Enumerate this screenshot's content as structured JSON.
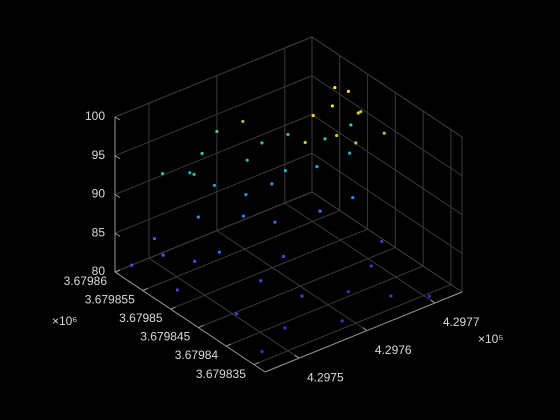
{
  "chart_data": {
    "type": "scatter3",
    "colormap": "parula",
    "grid": true,
    "xlim": [
      4.29745,
      4.29774
    ],
    "ylim": [
      3.679833,
      3.67986
    ],
    "zlim": [
      80,
      100
    ],
    "xticks": [
      4.2975,
      4.2976,
      4.2977
    ],
    "yticks": [
      3.679835,
      3.67984,
      3.679845,
      3.67985,
      3.679855,
      3.67986
    ],
    "zticks": [
      80,
      85,
      90,
      95,
      100
    ],
    "x_exponent_label": "×10⁵",
    "y_exponent_label": "×10⁶",
    "x": [
      4.29747,
      4.29752,
      4.29758,
      4.29763,
      4.29768,
      4.29772,
      4.29749,
      4.29755,
      4.2976,
      4.29766,
      4.29746,
      4.29751,
      4.29757,
      4.2977,
      4.29745,
      4.2975,
      4.29762,
      4.29767,
      4.29771,
      4.29748,
      4.29754,
      4.29758,
      4.29761,
      4.29764,
      4.29769,
      4.29773,
      4.29756,
      4.29759,
      4.29753,
      4.29765,
      4.29757,
      4.2976,
      4.29763,
      4.29752,
      4.29762,
      4.29768,
      4.29771,
      4.29774,
      4.29755,
      4.29766,
      4.29766,
      4.29768,
      4.2977,
      4.29767,
      4.29771,
      4.29773,
      4.29769,
      4.29772,
      4.29764,
      4.29774
    ],
    "y": [
      3.679836,
      3.679838,
      3.679835,
      3.67984,
      3.679842,
      3.679845,
      3.679843,
      3.679846,
      3.679848,
      3.679836,
      3.67985,
      3.679853,
      3.679841,
      3.679834,
      3.679857,
      3.679859,
      3.679852,
      3.67985,
      3.679849,
      3.679855,
      3.679856,
      3.679858,
      3.679856,
      3.679855,
      3.679853,
      3.679852,
      3.67986,
      3.679854,
      3.679851,
      3.679858,
      3.679859,
      3.67986,
      3.679859,
      3.67986,
      3.679857,
      3.679857,
      3.679854,
      3.679853,
      3.679858,
      3.679855,
      3.67985,
      3.679849,
      3.679851,
      3.679847,
      3.679848,
      3.67985,
      3.679846,
      3.679851,
      3.679849,
      3.679847
    ],
    "z": [
      80.5,
      80.8,
      81.0,
      80.6,
      81.2,
      81.5,
      81.3,
      82.0,
      82.4,
      80.9,
      82.1,
      82.6,
      81.7,
      80.4,
      82.3,
      83.0,
      84.2,
      84.8,
      85.6,
      83.5,
      85.8,
      87.5,
      86.2,
      87.0,
      88.4,
      89.2,
      88.9,
      85.1,
      84.0,
      90.5,
      91.5,
      92.8,
      93.5,
      90.2,
      89.8,
      91.0,
      90.8,
      92.0,
      90.0,
      88.0,
      97.5,
      98.5,
      99.2,
      96.0,
      97.0,
      95.5,
      94.8,
      98.0,
      95.2,
      93.8
    ]
  }
}
